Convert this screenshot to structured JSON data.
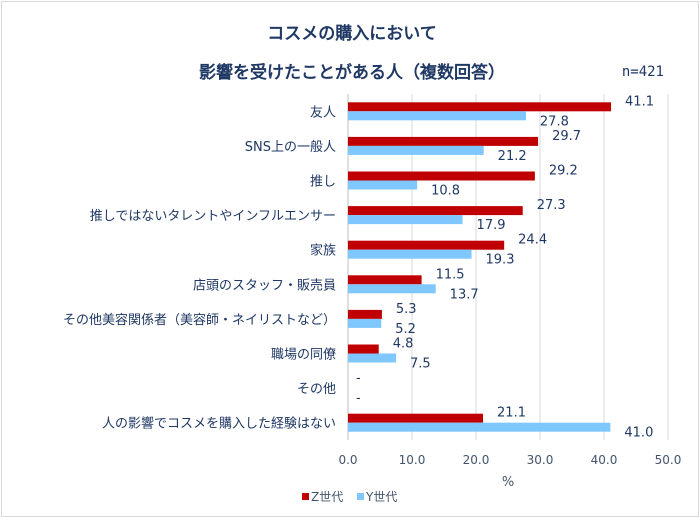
{
  "chart_data": {
    "type": "bar",
    "orientation": "horizontal",
    "title_lines": [
      "コスメの購入において",
      "影響を受けたことがある人（複数回答）"
    ],
    "note": "n=421",
    "categories": [
      "友人",
      "SNS上の一般人",
      "推し",
      "推しではないタレントやインフルエンサー",
      "家族",
      "店頭のスタッフ・販売員",
      "その他美容関係者（美容師・ネイリストなど）",
      "職場の同僚",
      "その他",
      "人の影響でコスメを購入した経験はない"
    ],
    "series": [
      {
        "name": "Z世代",
        "color": "#c00000",
        "values": [
          41.1,
          29.7,
          29.2,
          27.3,
          24.4,
          11.5,
          5.3,
          4.8,
          null,
          21.1
        ],
        "labels": [
          "41.1",
          "29.7",
          "29.2",
          "27.3",
          "24.4",
          "11.5",
          "5.3",
          "4.8",
          "-",
          "21.1"
        ]
      },
      {
        "name": "Y世代",
        "color": "#7fc7ff",
        "values": [
          27.8,
          21.2,
          10.8,
          17.9,
          19.3,
          13.7,
          5.2,
          7.5,
          null,
          41.0
        ],
        "labels": [
          "27.8",
          "21.2",
          "10.8",
          "17.9",
          "19.3",
          "13.7",
          "5.2",
          "7.5",
          "-",
          "41.0"
        ]
      }
    ],
    "xlim": [
      0,
      50
    ],
    "xticks": [
      "0.0",
      "10.0",
      "20.0",
      "30.0",
      "40.0",
      "50.0"
    ],
    "xlabel": "%",
    "grid": true,
    "legend": "bottom-left"
  }
}
